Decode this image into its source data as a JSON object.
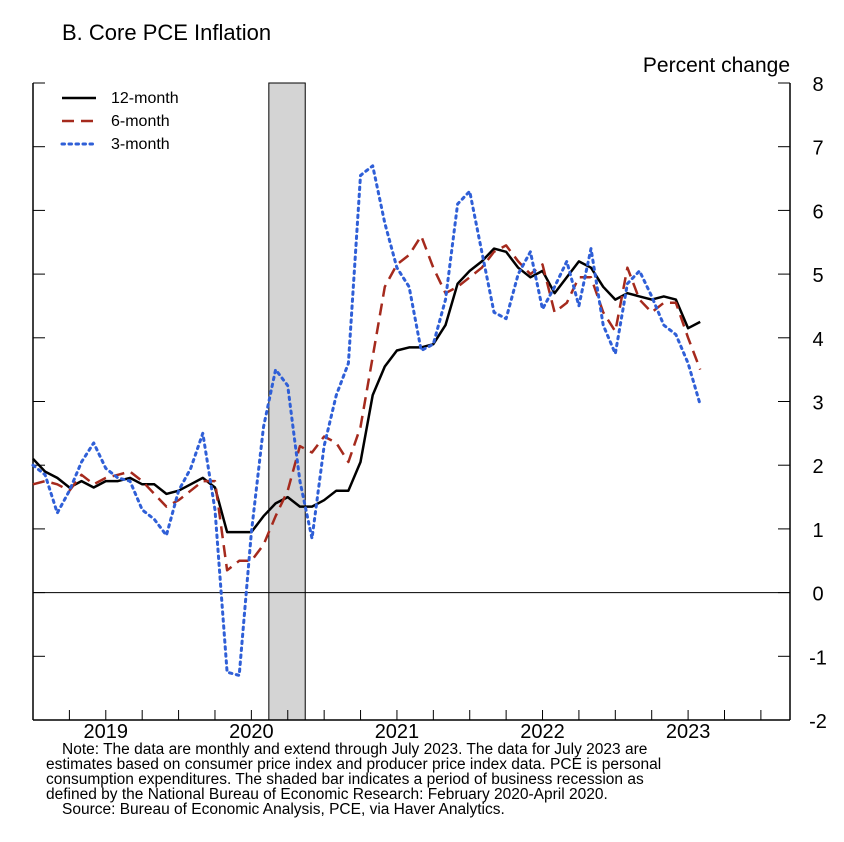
{
  "chart_data": {
    "type": "line",
    "title": "B. Core PCE Inflation",
    "ylabel": "Percent change",
    "xlim": [
      2018.5,
      2023.7
    ],
    "ylim": [
      -2,
      8
    ],
    "y_ticks": [
      8,
      7,
      6,
      5,
      4,
      3,
      2,
      1,
      0,
      -1,
      -2
    ],
    "x_tick_labels": [
      {
        "label": "2019",
        "center": 2019.0
      },
      {
        "label": "2020",
        "center": 2020.0
      },
      {
        "label": "2021",
        "center": 2021.0
      },
      {
        "label": "2022",
        "center": 2022.0
      },
      {
        "label": "2023",
        "center": 2023.0
      }
    ],
    "recession": {
      "start": 2020.12,
      "end": 2020.37
    },
    "zero_line": 0,
    "series": [
      {
        "name": "12-month",
        "color": "#000000",
        "dash": "solid",
        "x_start": 2018.5,
        "x_step": 0.08333,
        "values": [
          2.1,
          1.9,
          1.8,
          1.65,
          1.75,
          1.65,
          1.75,
          1.75,
          1.8,
          1.7,
          1.7,
          1.55,
          1.6,
          1.7,
          1.8,
          1.65,
          0.95,
          0.95,
          0.95,
          1.2,
          1.4,
          1.5,
          1.35,
          1.35,
          1.45,
          1.6,
          1.6,
          2.05,
          3.1,
          3.55,
          3.8,
          3.85,
          3.85,
          3.9,
          4.2,
          4.85,
          5.05,
          5.2,
          5.4,
          5.35,
          5.1,
          4.95,
          5.05,
          4.7,
          4.95,
          5.2,
          5.1,
          4.8,
          4.6,
          4.7,
          4.65,
          4.6,
          4.65,
          4.6,
          4.15,
          4.25
        ]
      },
      {
        "name": "6-month",
        "color": "#a52a1d",
        "dash": "dashed",
        "x_start": 2018.5,
        "x_step": 0.08333,
        "values": [
          1.7,
          1.75,
          1.7,
          1.6,
          1.85,
          1.7,
          1.8,
          1.85,
          1.9,
          1.75,
          1.55,
          1.35,
          1.45,
          1.6,
          1.75,
          1.75,
          0.35,
          0.5,
          0.5,
          0.75,
          1.2,
          1.6,
          2.3,
          2.2,
          2.45,
          2.35,
          2.05,
          2.6,
          3.7,
          4.8,
          5.15,
          5.3,
          5.6,
          5.1,
          4.7,
          4.8,
          4.95,
          5.1,
          5.35,
          5.45,
          5.2,
          5.0,
          5.15,
          4.4,
          4.55,
          4.95,
          4.95,
          4.4,
          4.1,
          5.1,
          4.6,
          4.4,
          4.55,
          4.55,
          4.0,
          3.5
        ]
      },
      {
        "name": "3-month",
        "color": "#2f5fd7",
        "dash": "dotted",
        "x_start": 2018.5,
        "x_step": 0.08333,
        "values": [
          2.0,
          1.85,
          1.25,
          1.6,
          2.05,
          2.35,
          1.95,
          1.8,
          1.75,
          1.3,
          1.15,
          0.9,
          1.6,
          1.95,
          2.5,
          1.3,
          -1.25,
          -1.3,
          0.95,
          2.6,
          3.5,
          3.25,
          1.75,
          0.85,
          2.3,
          3.1,
          3.6,
          6.55,
          6.7,
          5.8,
          5.1,
          4.8,
          3.8,
          3.9,
          4.6,
          6.1,
          6.3,
          5.35,
          4.4,
          4.3,
          5.0,
          5.35,
          4.45,
          4.8,
          5.2,
          4.5,
          5.4,
          4.2,
          3.75,
          4.85,
          5.05,
          4.65,
          4.2,
          4.05,
          3.6,
          2.95
        ]
      }
    ]
  },
  "legend": {
    "items": [
      {
        "label": "12-month",
        "color": "#000000"
      },
      {
        "label": "6-month",
        "color": "#a52a1d"
      },
      {
        "label": "3-month",
        "color": "#2f5fd7"
      }
    ]
  },
  "note": {
    "line1": "Note: The data are monthly and extend through July 2023. The data for July 2023 are",
    "line2": "estimates based on consumer price index and producer price index data. PCE is personal",
    "line3": "consumption expenditures. The shaded bar indicates a period of business recession as",
    "line4": "defined by the National Bureau of Economic Research: February 2020-April 2020.",
    "source": "Source: Bureau of Economic Analysis, PCE, via Haver Analytics."
  }
}
